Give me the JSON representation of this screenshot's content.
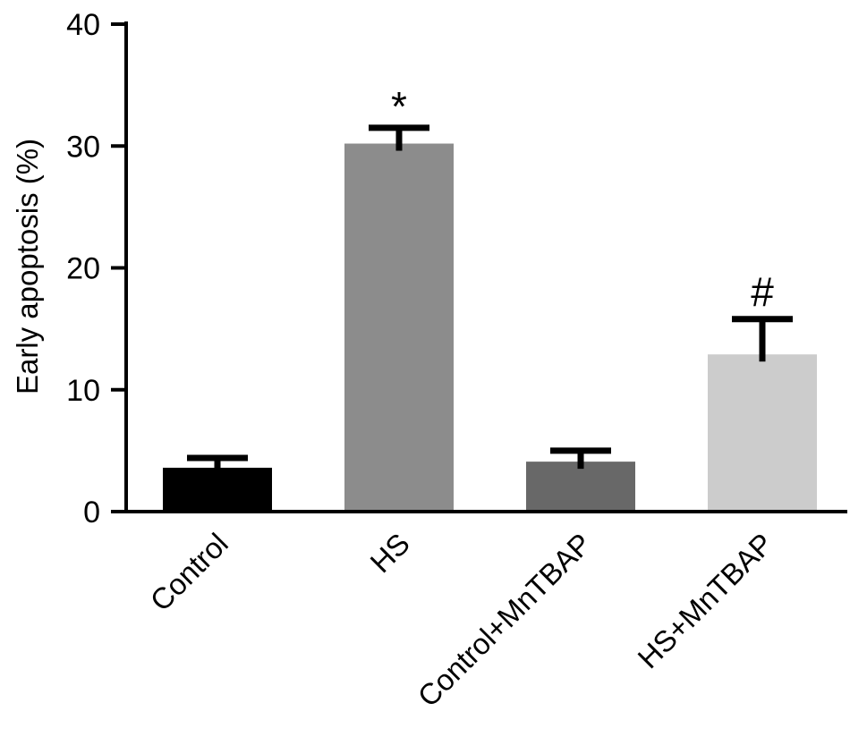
{
  "chart_data": {
    "type": "bar",
    "title": "",
    "xlabel": "",
    "ylabel": "Early apoptosis (%)",
    "ylim": [
      0,
      40
    ],
    "yticks": [
      "0",
      "10",
      "20",
      "30",
      "40"
    ],
    "categories": [
      "Control",
      "HS",
      "Control+MnTBAP",
      "HS+MnTBAP"
    ],
    "values": [
      3.6,
      30.2,
      4.1,
      12.9
    ],
    "errors": [
      0.8,
      1.3,
      0.9,
      2.9
    ],
    "annotations": [
      "",
      "*",
      "",
      "#"
    ],
    "bar_colors": [
      "#000000",
      "#8c8c8c",
      "#686868",
      "#cccccc"
    ],
    "grid": false
  }
}
